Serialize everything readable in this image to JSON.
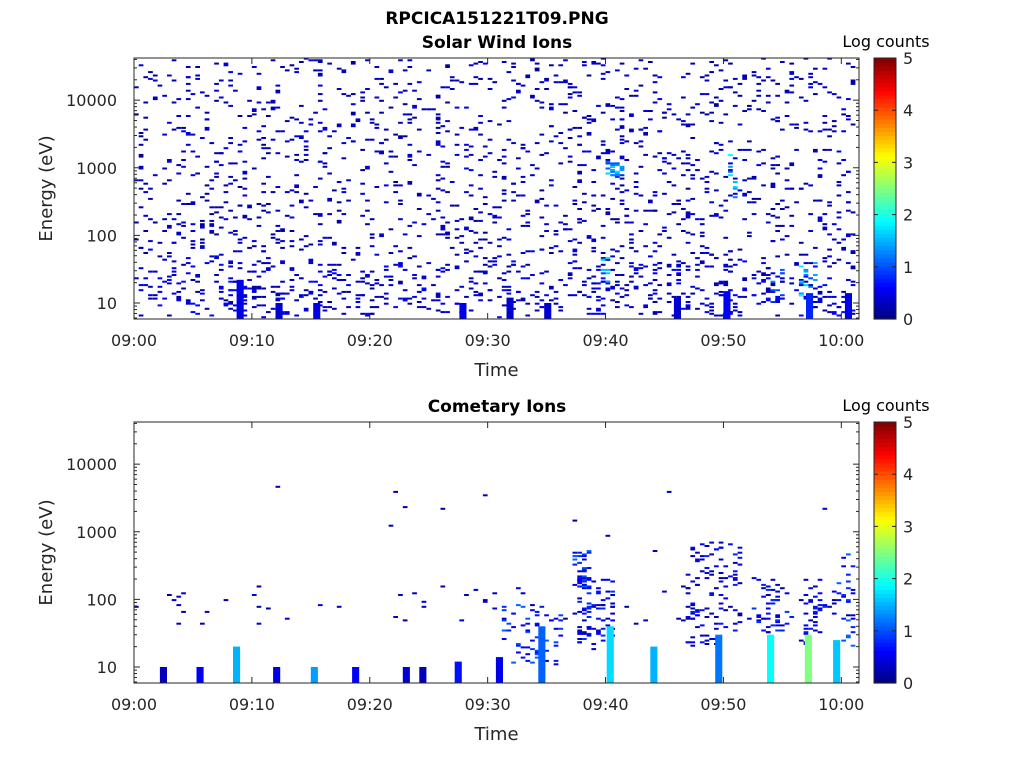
{
  "figure_title": "RPCICA151221T09.PNG",
  "chart_data": [
    {
      "type": "heatmap",
      "title": "Solar Wind Ions",
      "xlabel": "Time",
      "ylabel": "Energy (eV)",
      "x_ticks": [
        "09:00",
        "09:10",
        "09:20",
        "09:30",
        "09:40",
        "09:50",
        "10:00"
      ],
      "x_range_minutes": [
        0,
        61.5
      ],
      "y_ticks": [
        "10",
        "100",
        "1000",
        "10000"
      ],
      "y_scale": "log",
      "y_range": [
        5.8,
        42000
      ],
      "colorbar": {
        "title": "Log counts",
        "range": [
          0,
          5
        ],
        "ticks": [
          "0",
          "1",
          "2",
          "3",
          "4",
          "5"
        ],
        "colormap": "jet"
      },
      "patches": [
        {
          "t": [
            0,
            61.5
          ],
          "e": [
            6,
            40000
          ],
          "count": 1800,
          "level": [
            0.1,
            0.5
          ]
        },
        {
          "t": [
            0,
            61.5
          ],
          "e": [
            6,
            40
          ],
          "count": 320,
          "level": [
            0.2,
            0.7
          ]
        },
        {
          "t": [
            39.8,
            41.2
          ],
          "e": [
            700,
            1300
          ],
          "count": 26,
          "level": [
            0.8,
            1.7
          ]
        },
        {
          "t": [
            50.3,
            51.0
          ],
          "e": [
            300,
            3000
          ],
          "count": 8,
          "level": [
            1.0,
            1.9
          ]
        },
        {
          "t": [
            39.3,
            40.1
          ],
          "e": [
            20,
            50
          ],
          "count": 8,
          "level": [
            0.9,
            1.7
          ]
        },
        {
          "t": [
            56.2,
            57.6
          ],
          "e": [
            12,
            40
          ],
          "count": 16,
          "level": [
            1.0,
            2.0
          ]
        },
        {
          "t": [
            53.5,
            54.8
          ],
          "e": [
            10,
            30
          ],
          "count": 10,
          "level": [
            0.6,
            1.4
          ]
        }
      ],
      "columns": [
        {
          "t": 8.7,
          "e_top": 22,
          "level": 0.5
        },
        {
          "t": 12.0,
          "e_top": 10,
          "level": 0.4
        },
        {
          "t": 15.2,
          "e_top": 10,
          "level": 0.5
        },
        {
          "t": 27.6,
          "e_top": 10,
          "level": 0.5
        },
        {
          "t": 31.6,
          "e_top": 12,
          "level": 0.4
        },
        {
          "t": 34.8,
          "e_top": 10,
          "level": 0.4
        },
        {
          "t": 45.8,
          "e_top": 12,
          "level": 0.4
        },
        {
          "t": 50.0,
          "e_top": 15,
          "level": 0.6
        },
        {
          "t": 57.0,
          "e_top": 14,
          "level": 0.8
        },
        {
          "t": 60.3,
          "e_top": 14,
          "level": 0.5
        }
      ]
    },
    {
      "type": "heatmap",
      "title": "Cometary Ions",
      "xlabel": "Time",
      "ylabel": "Energy (eV)",
      "x_ticks": [
        "09:00",
        "09:10",
        "09:20",
        "09:30",
        "09:40",
        "09:50",
        "10:00"
      ],
      "x_range_minutes": [
        0,
        61.5
      ],
      "y_ticks": [
        "10",
        "100",
        "1000",
        "10000"
      ],
      "y_scale": "log",
      "y_range": [
        5.8,
        42000
      ],
      "colorbar": {
        "title": "Log counts",
        "range": [
          0,
          5
        ],
        "ticks": [
          "0",
          "1",
          "2",
          "3",
          "4",
          "5"
        ],
        "colormap": "jet"
      },
      "patches": [
        {
          "t": [
            0,
            61.5
          ],
          "e": [
            40,
            150
          ],
          "count": 70,
          "level": [
            0.1,
            0.5
          ]
        },
        {
          "t": [
            0,
            61.5
          ],
          "e": [
            300,
            6000
          ],
          "count": 12,
          "level": [
            0.1,
            0.4
          ]
        },
        {
          "t": [
            31,
            36
          ],
          "e": [
            10,
            80
          ],
          "count": 60,
          "level": [
            0.3,
            1.2
          ]
        },
        {
          "t": [
            37.0,
            38.5
          ],
          "e": [
            150,
            500
          ],
          "count": 40,
          "level": [
            0.4,
            1.2
          ]
        },
        {
          "t": [
            37.5,
            40.5
          ],
          "e": [
            15,
            200
          ],
          "count": 70,
          "level": [
            0.2,
            0.9
          ]
        },
        {
          "t": [
            46.5,
            51.5
          ],
          "e": [
            20,
            700
          ],
          "count": 110,
          "level": [
            0.1,
            0.8
          ]
        },
        {
          "t": [
            52.5,
            55.5
          ],
          "e": [
            30,
            200
          ],
          "count": 45,
          "level": [
            0.2,
            0.9
          ]
        },
        {
          "t": [
            56.5,
            58.5
          ],
          "e": [
            20,
            200
          ],
          "count": 35,
          "level": [
            0.2,
            0.8
          ]
        },
        {
          "t": [
            59.5,
            61.5
          ],
          "e": [
            20,
            500
          ],
          "count": 35,
          "level": [
            0.3,
            1.2
          ]
        }
      ],
      "columns": [
        {
          "t": 2.2,
          "e_top": 10,
          "level": 0.3
        },
        {
          "t": 5.3,
          "e_top": 10,
          "level": 0.6
        },
        {
          "t": 8.4,
          "e_top": 20,
          "level": 1.5
        },
        {
          "t": 11.8,
          "e_top": 10,
          "level": 0.5
        },
        {
          "t": 15.0,
          "e_top": 10,
          "level": 1.4
        },
        {
          "t": 18.5,
          "e_top": 10,
          "level": 0.6
        },
        {
          "t": 22.8,
          "e_top": 10,
          "level": 0.4
        },
        {
          "t": 24.2,
          "e_top": 10,
          "level": 0.3
        },
        {
          "t": 27.2,
          "e_top": 12,
          "level": 0.7
        },
        {
          "t": 30.7,
          "e_top": 14,
          "level": 0.5
        },
        {
          "t": 34.3,
          "e_top": 40,
          "level": 1.1
        },
        {
          "t": 40.1,
          "e_top": 40,
          "level": 1.7
        },
        {
          "t": 43.8,
          "e_top": 20,
          "level": 1.5
        },
        {
          "t": 49.3,
          "e_top": 30,
          "level": 1.2
        },
        {
          "t": 53.7,
          "e_top": 30,
          "level": 1.9
        },
        {
          "t": 56.9,
          "e_top": 30,
          "level": 2.5
        },
        {
          "t": 59.3,
          "e_top": 25,
          "level": 1.6
        }
      ]
    }
  ]
}
